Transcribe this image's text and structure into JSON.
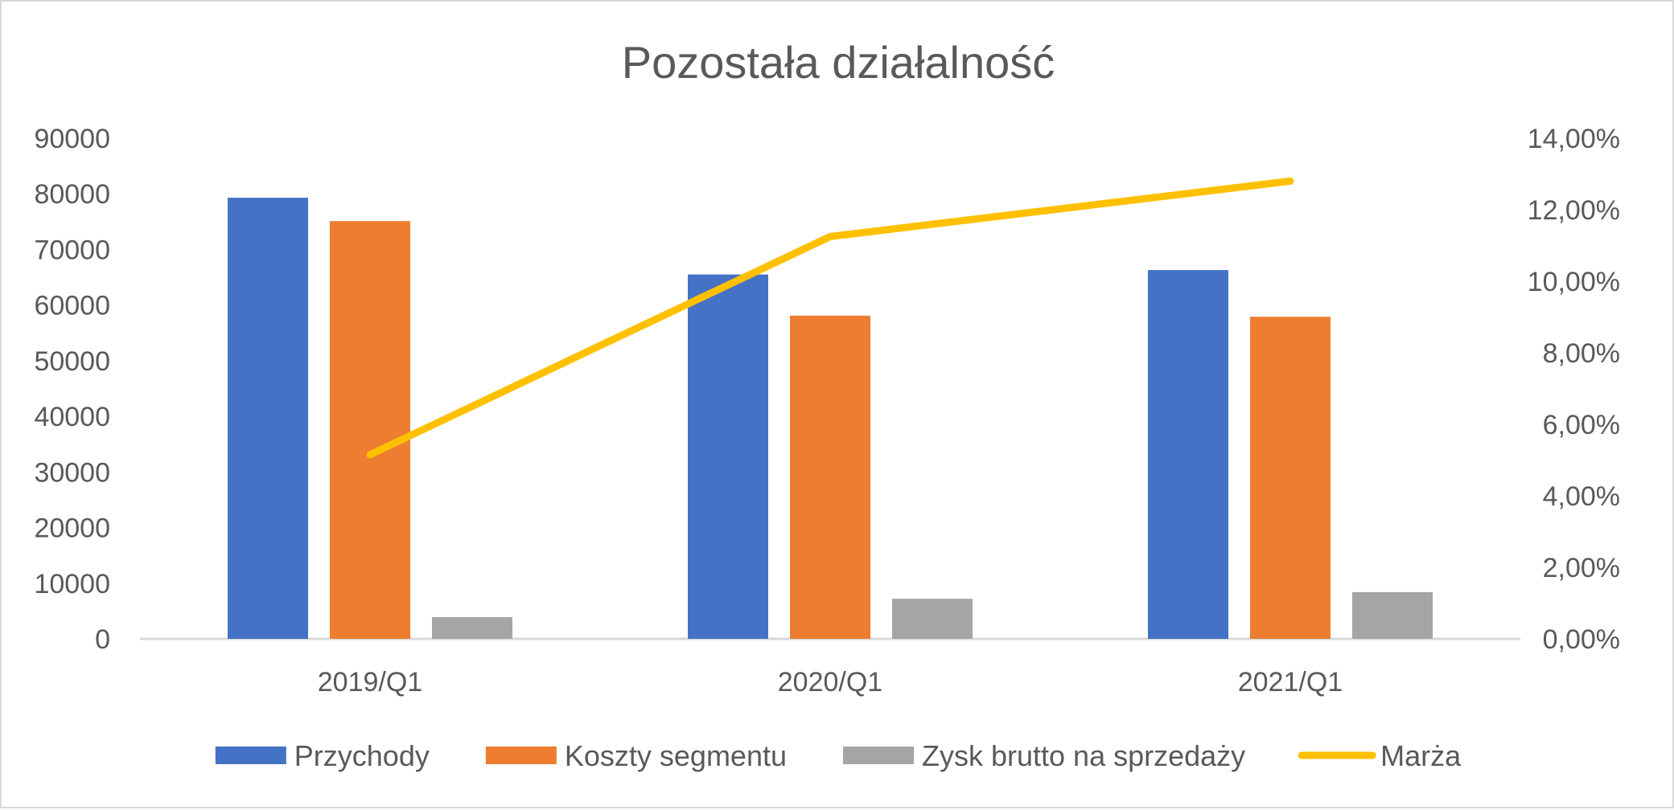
{
  "chart_data": {
    "type": "bar",
    "title": "Pozostała działalność",
    "categories": [
      "2019/Q1",
      "2020/Q1",
      "2021/Q1"
    ],
    "series": [
      {
        "name": "Przychody",
        "type": "bar",
        "axis": "left",
        "color": "#4472C4",
        "values": [
          79300,
          65500,
          66300
        ]
      },
      {
        "name": "Koszty segmentu",
        "type": "bar",
        "axis": "left",
        "color": "#ED7D31",
        "values": [
          75100,
          58100,
          57900
        ]
      },
      {
        "name": "Zysk brutto na sprzedaży",
        "type": "bar",
        "axis": "left",
        "color": "#A5A5A5",
        "values": [
          3900,
          7200,
          8400
        ]
      },
      {
        "name": "Marża",
        "type": "line",
        "axis": "right",
        "color": "#FFC000",
        "values": [
          0.0515,
          0.1125,
          0.128
        ]
      }
    ],
    "y_left": {
      "ylim": [
        0,
        90000
      ],
      "ticks": [
        "0",
        "10000",
        "20000",
        "30000",
        "40000",
        "50000",
        "60000",
        "70000",
        "80000",
        "90000"
      ]
    },
    "y_right": {
      "ylim": [
        0,
        0.14
      ],
      "ticks": [
        "0,00%",
        "2,00%",
        "4,00%",
        "6,00%",
        "8,00%",
        "10,00%",
        "12,00%",
        "14,00%"
      ]
    },
    "grid": false,
    "legend_position": "bottom"
  }
}
